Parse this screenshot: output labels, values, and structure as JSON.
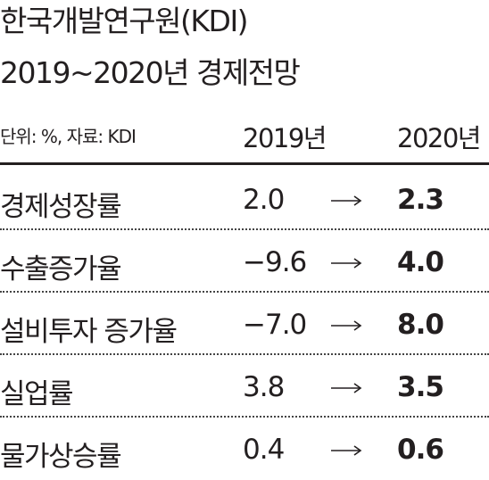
{
  "header": {
    "title": [
      "한국개발연구원(KDI)",
      "2019~2020년 경제전망"
    ],
    "unit": "단위: %, 자료: KDI"
  },
  "table": {
    "columns": [
      "2019년",
      "2020년"
    ],
    "rows": [
      [
        "경제성장률",
        "2.0",
        "2.3"
      ],
      [
        "수출증가율",
        "−9.6",
        "4.0"
      ],
      [
        "설비투자 증가율",
        "−7.0",
        "8.0"
      ],
      [
        "실업률",
        "3.8",
        "3.5"
      ],
      [
        "물가상승률",
        "0.4",
        "0.6"
      ]
    ]
  }
}
